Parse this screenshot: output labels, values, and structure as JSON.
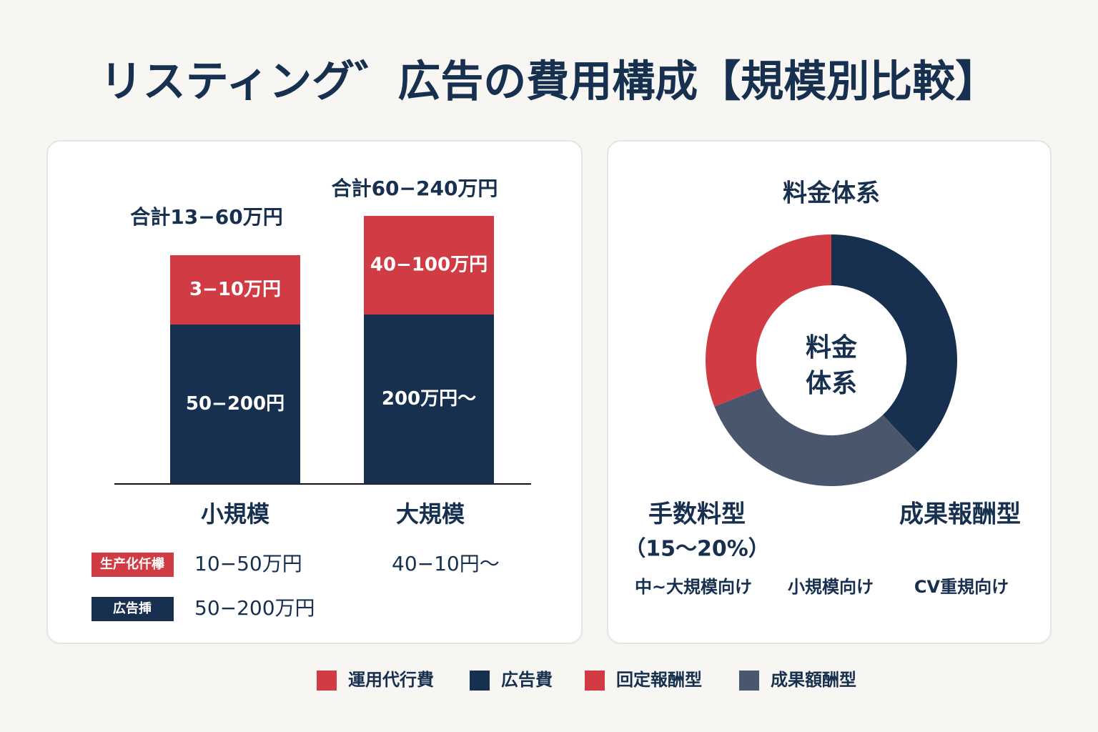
{
  "title": "リスティング゛広告の費用構成【規模別比較】",
  "chart_data": [
    {
      "type": "bar",
      "stacked": true,
      "categories": [
        "小規模",
        "大規模"
      ],
      "totals": [
        "合計13−60万円",
        "合計60−240万円"
      ],
      "ylim": [
        0,
        400
      ],
      "series": [
        {
          "name": "広告費",
          "color": "#18304f",
          "values": [
            223,
            237
          ],
          "value_labels": [
            "50−200円",
            "200万円～"
          ]
        },
        {
          "name": "運用代行費",
          "color": "#d13c44",
          "values": [
            97,
            138
          ],
          "value_labels": [
            "3−10万円",
            "40−100万円"
          ]
        }
      ],
      "table": {
        "rows": [
          [
            "生产化仟欅",
            "10−50万円",
            "40−10円～"
          ],
          [
            "広告挿",
            "50−200万円"
          ]
        ]
      }
    },
    {
      "type": "donut",
      "title": "料金体系",
      "center_label": [
        "料金",
        "体系"
      ],
      "values": [
        38,
        31,
        31
      ],
      "colors": [
        "#18304f",
        "#4a566b",
        "#d13c44"
      ],
      "categories": [
        null,
        "成果額酬型",
        "回定報酬型"
      ],
      "labels": [
        "手数料型",
        "（15～20%）",
        "成果報酬型"
      ],
      "notes": [
        "中~大規模向け",
        "小規模向け",
        "CV重規向け"
      ]
    }
  ]
}
